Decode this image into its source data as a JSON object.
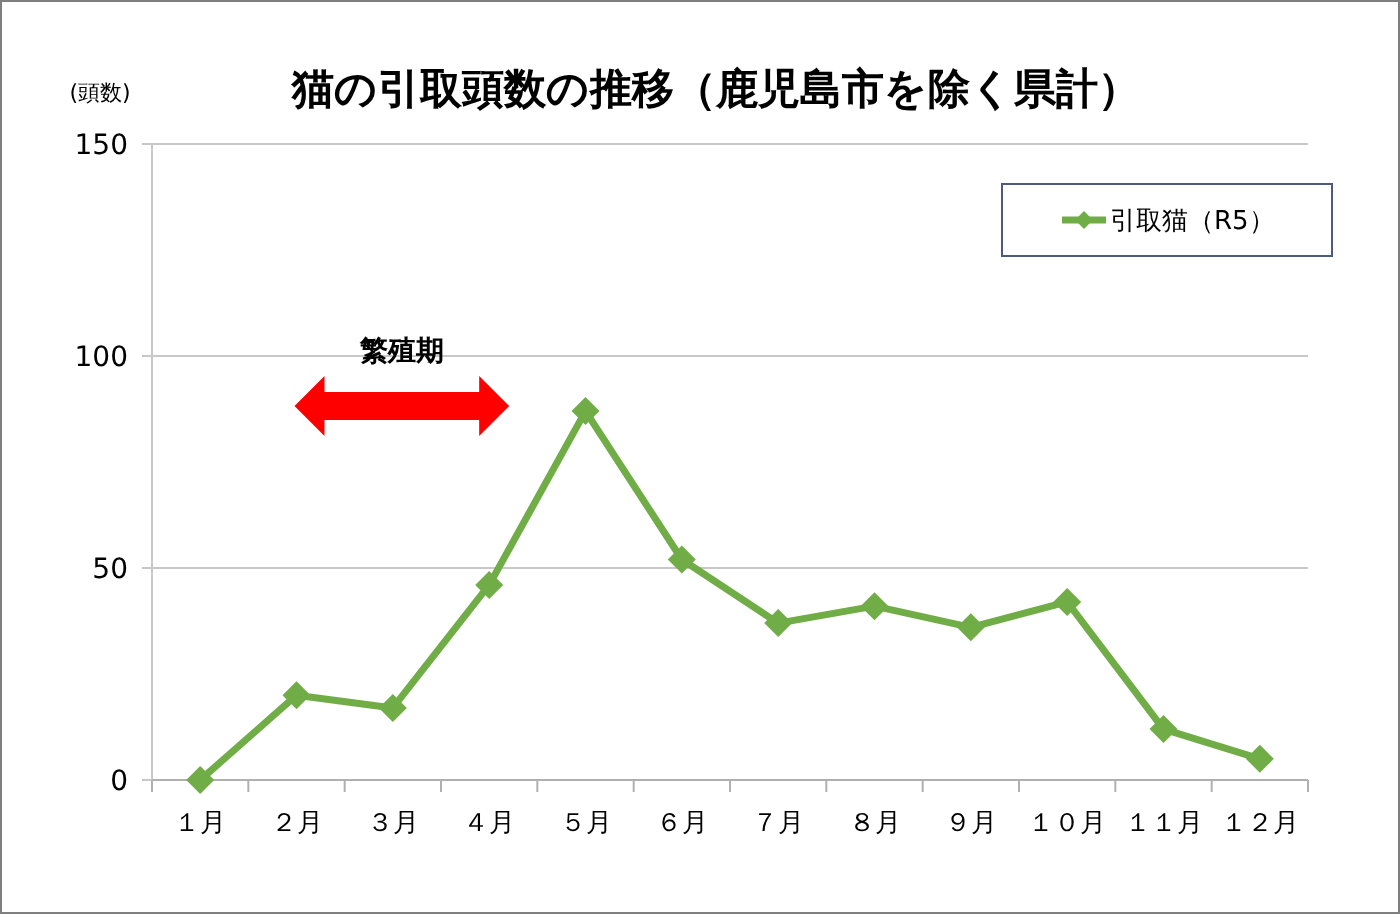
{
  "chart_data": {
    "type": "line",
    "title": "猫の引取頭数の推移（鹿児島市を除く県計）",
    "ylabel": "(頭数)",
    "categories": [
      "１月",
      "２月",
      "３月",
      "４月",
      "５月",
      "６月",
      "７月",
      "８月",
      "９月",
      "１０月",
      "１１月",
      "１２月"
    ],
    "series": [
      {
        "name": "引取猫（R5）",
        "color": "#70ad47",
        "values": [
          0,
          20,
          17,
          46,
          87,
          52,
          37,
          41,
          36,
          42,
          12,
          5
        ]
      }
    ],
    "ylim": [
      0,
      150
    ],
    "yticks": [
      0,
      50,
      100,
      150
    ],
    "grid": "y",
    "legend": "top right",
    "marker": "diamond",
    "line_style": "solid",
    "annotations": [
      "繁殖期"
    ]
  }
}
